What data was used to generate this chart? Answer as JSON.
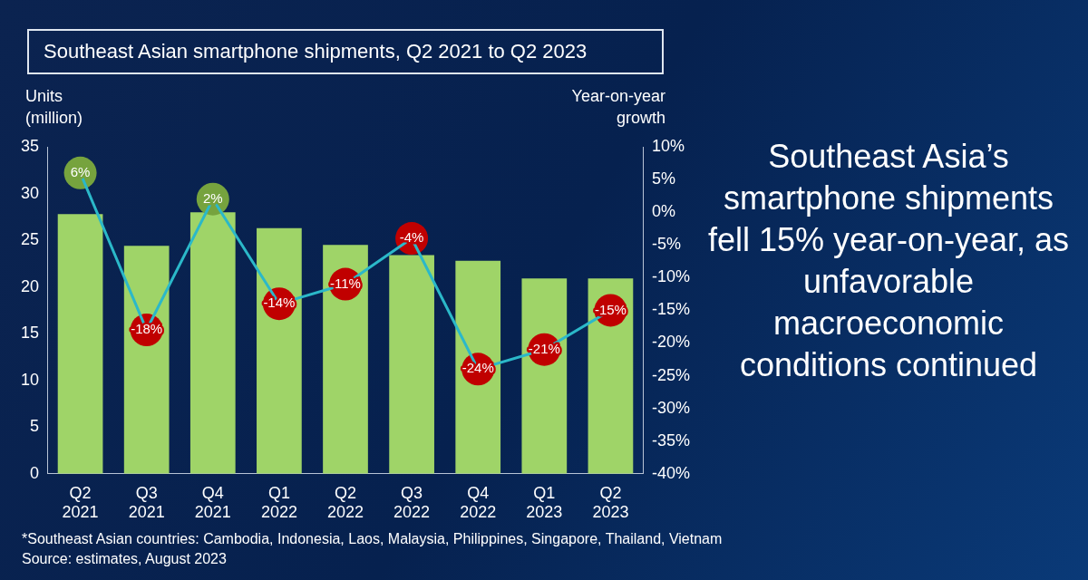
{
  "chart_data": {
    "type": "bar",
    "title": "Southeast Asian smartphone shipments, Q2 2021 to Q2 2023",
    "categories": [
      "Q2 2021",
      "Q3 2021",
      "Q4 2021",
      "Q1 2022",
      "Q2 2022",
      "Q3 2022",
      "Q4 2022",
      "Q1 2023",
      "Q2 2023"
    ],
    "series": [
      {
        "color": "#9fd468",
        "values": [
          27.8,
          24.4,
          28,
          26.3,
          24.5,
          23.4,
          22.8,
          20.9,
          20.9
        ]
      },
      {
        "type": "line",
        "axis": "y2",
        "color": "#2bb8c9",
        "marker": "circle",
        "colors": [
          "#76a33e",
          "#c00000",
          "#76a33e",
          "#c00000",
          "#c00000",
          "#c00000",
          "#c00000",
          "#c00000",
          "#c00000"
        ],
        "values": [
          6,
          -18,
          2,
          -14,
          -11,
          -4,
          -24,
          -21,
          -15
        ],
        "value_labels": [
          "6%",
          "-18%",
          "2%",
          "-14%",
          "-11%",
          "-4%",
          "-24%",
          "-21%",
          "-15%"
        ]
      }
    ],
    "ylabel": "Units (million)",
    "y2label": "Year-on-year growth",
    "ylim": [
      0,
      35
    ],
    "yticks": [
      0,
      5,
      10,
      15,
      20,
      25,
      30,
      35
    ],
    "y2lim": [
      -40,
      10
    ],
    "y2ticks": [
      {
        "value": -40,
        "label": "-40%"
      },
      {
        "value": -35,
        "label": "-35%"
      },
      {
        "value": -30,
        "label": "-30%"
      },
      {
        "value": -25,
        "label": "-25%"
      },
      {
        "value": -20,
        "label": "-20%"
      },
      {
        "value": -15,
        "label": "-15%"
      },
      {
        "value": -10,
        "label": "-10%"
      },
      {
        "value": -5,
        "label": "-5%"
      },
      {
        "value": 0,
        "label": "0%"
      },
      {
        "value": 5,
        "label": "5%"
      },
      {
        "value": 10,
        "label": "10%"
      }
    ],
    "grid": false,
    "legend": false,
    "annotations": [
      "Southeast Asia’s smartphone shipments fell 15% year-on-year, as unfavorable macroeconomic conditions continued",
      "*Southeast Asian countries: Cambodia, Indonesia, Laos, Malaysia, Philippines, Singapore, Thailand, Vietnam",
      "Source: estimates, August 2023"
    ]
  }
}
